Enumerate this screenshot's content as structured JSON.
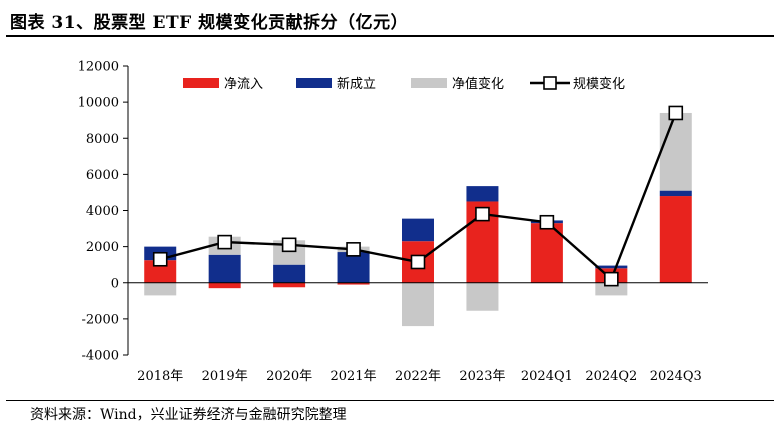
{
  "header": {
    "title": "图表 31、股票型 ETF 规模变化贡献拆分（亿元）"
  },
  "footer": {
    "source": "资料来源：Wind，兴业证券经济与金融研究院整理"
  },
  "colors": {
    "net_inflow": "#e8231e",
    "new_issue": "#112e8c",
    "nav_change": "#c8c8c8",
    "scale_line": "#000000"
  },
  "chart_data": {
    "type": "bar",
    "stacked": true,
    "categories": [
      "2018年",
      "2019年",
      "2020年",
      "2021年",
      "2022年",
      "2023年",
      "2024Q1",
      "2024Q2",
      "2024Q3"
    ],
    "series": [
      {
        "name": "净流入",
        "kind": "bar",
        "color": "#e8231e",
        "values": [
          1250,
          -300,
          -250,
          -100,
          2300,
          4500,
          3300,
          800,
          4800
        ]
      },
      {
        "name": "新成立",
        "kind": "bar",
        "color": "#112e8c",
        "values": [
          750,
          1550,
          1000,
          1700,
          1250,
          850,
          150,
          150,
          300
        ]
      },
      {
        "name": "净值变化",
        "kind": "bar",
        "color": "#c8c8c8",
        "values": [
          -700,
          1000,
          1350,
          300,
          -2400,
          -1550,
          0,
          -700,
          4300
        ]
      },
      {
        "name": "规模变化",
        "kind": "line",
        "color": "#000000",
        "values": [
          1300,
          2250,
          2100,
          1850,
          1150,
          3800,
          3350,
          200,
          9400
        ]
      }
    ],
    "yticks": [
      -4000,
      -2000,
      0,
      2000,
      4000,
      6000,
      8000,
      10000,
      12000
    ],
    "ylim": [
      -4000,
      12000
    ],
    "xlabel": "",
    "ylabel": "",
    "legend_position": "top",
    "grid": false
  }
}
